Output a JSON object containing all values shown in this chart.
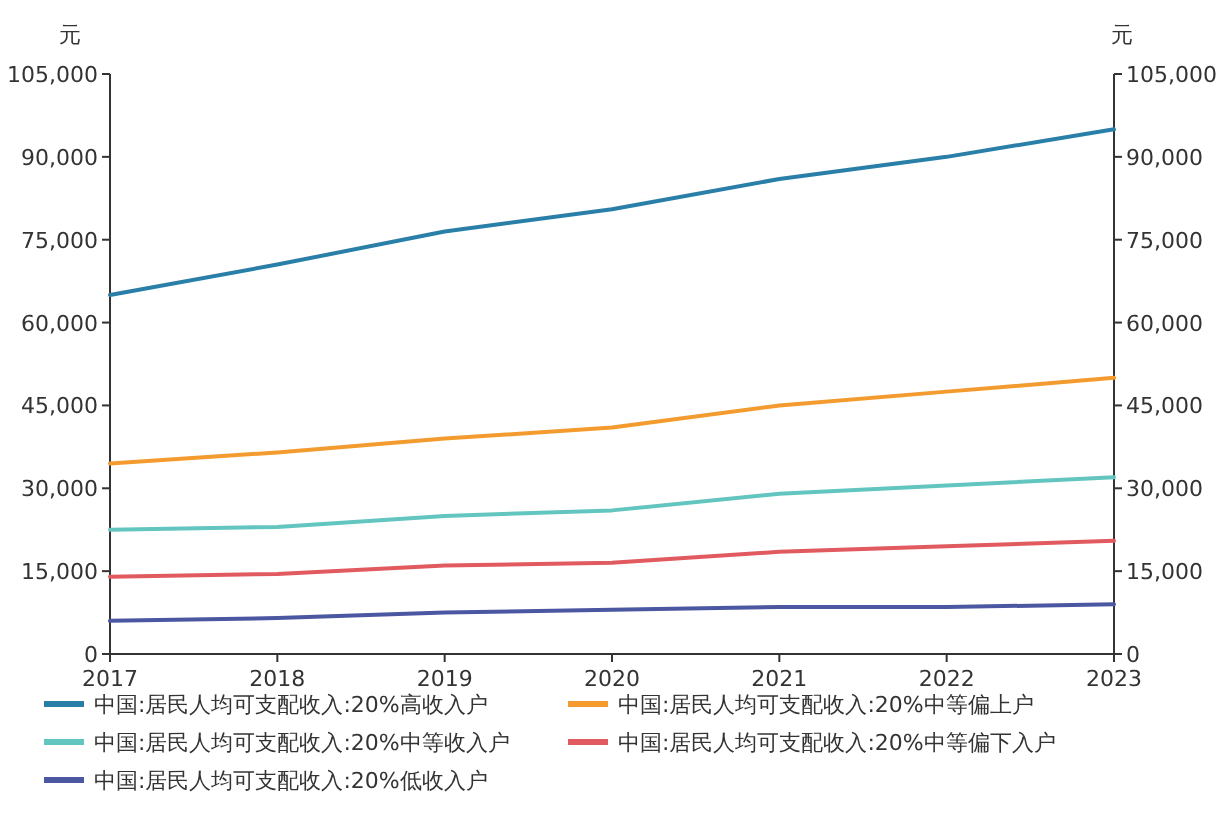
{
  "chart_data": {
    "type": "line",
    "ylabel": "元",
    "y2label": "元",
    "x": [
      2017,
      2018,
      2019,
      2020,
      2021,
      2022,
      2023
    ],
    "xlim": [
      2017,
      2023
    ],
    "xticks": [
      2017,
      2018,
      2019,
      2020,
      2021,
      2022,
      2023
    ],
    "ylim": [
      0,
      105000
    ],
    "yticks": [
      {
        "value": 0,
        "label": "0"
      },
      {
        "value": 15000,
        "label": "15,000"
      },
      {
        "value": 30000,
        "label": "30,000"
      },
      {
        "value": 45000,
        "label": "45,000"
      },
      {
        "value": 60000,
        "label": "60,000"
      },
      {
        "value": 75000,
        "label": "75,000"
      },
      {
        "value": 90000,
        "label": "90,000"
      },
      {
        "value": 105000,
        "label": "105,000"
      }
    ],
    "y2lim": [
      0,
      105000
    ],
    "y2ticks": [
      {
        "value": 0,
        "label": "0"
      },
      {
        "value": 15000,
        "label": "15,000"
      },
      {
        "value": 30000,
        "label": "30,000"
      },
      {
        "value": 45000,
        "label": "45,000"
      },
      {
        "value": 60000,
        "label": "60,000"
      },
      {
        "value": 75000,
        "label": "75,000"
      },
      {
        "value": 90000,
        "label": "90,000"
      },
      {
        "value": 105000,
        "label": "105,000"
      }
    ],
    "grid": false,
    "legend": "bottom",
    "marker": "none",
    "line_style": "solid",
    "series": [
      {
        "name": "中国:居民人均可支配收入:20%高收入户",
        "color": "#2a7fa8",
        "values": [
          65000,
          70500,
          76500,
          80500,
          86000,
          90000,
          95000
        ]
      },
      {
        "name": "中国:居民人均可支配收入:20%中等偏上户",
        "color": "#f39b2f",
        "values": [
          34500,
          36500,
          39000,
          41000,
          45000,
          47500,
          50000
        ]
      },
      {
        "name": "中国:居民人均可支配收入:20%中等收入户",
        "color": "#63c5bf",
        "values": [
          22500,
          23000,
          25000,
          26000,
          29000,
          30500,
          32000
        ]
      },
      {
        "name": "中国:居民人均可支配收入:20%中等偏下入户",
        "color": "#e05a5f",
        "values": [
          14000,
          14500,
          16000,
          16500,
          18500,
          19500,
          20500
        ]
      },
      {
        "name": "中国:居民人均可支配收入:20%低收入户",
        "color": "#4b57a0",
        "values": [
          6000,
          6500,
          7500,
          8000,
          8500,
          8500,
          9000
        ]
      }
    ]
  }
}
